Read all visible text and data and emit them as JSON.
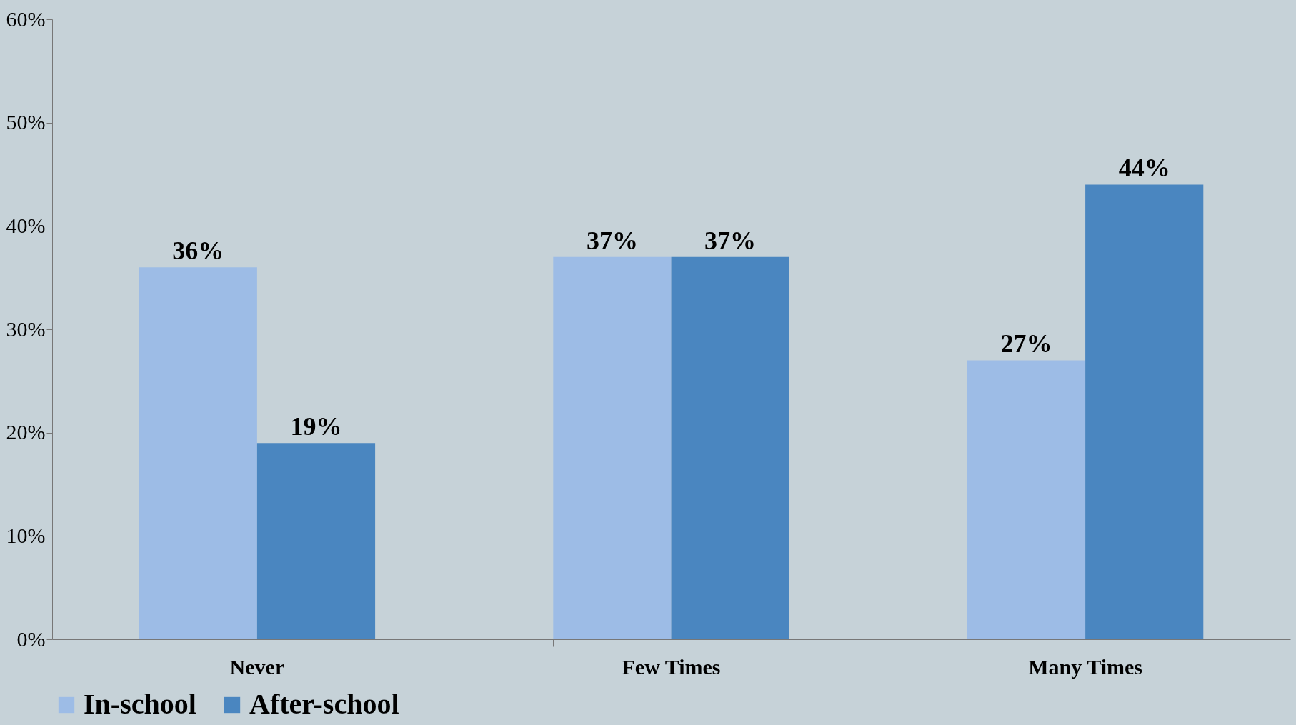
{
  "chart_data": {
    "type": "bar",
    "categories": [
      "Never",
      "Few Times",
      "Many Times"
    ],
    "series": [
      {
        "name": "In-school",
        "color": "#9dbce6",
        "values": [
          36,
          37,
          27
        ],
        "value_labels": [
          "36%",
          "37%",
          "27%"
        ]
      },
      {
        "name": "After-school",
        "color": "#4a86c0",
        "values": [
          19,
          37,
          44
        ],
        "value_labels": [
          "19%",
          "37%",
          "44%"
        ]
      }
    ],
    "ylim": [
      0,
      60
    ],
    "yticks": [
      {
        "value": 0,
        "label": "0%"
      },
      {
        "value": 10,
        "label": "10%"
      },
      {
        "value": 20,
        "label": "20%"
      },
      {
        "value": 30,
        "label": "30%"
      },
      {
        "value": 40,
        "label": "40%"
      },
      {
        "value": 50,
        "label": "50%"
      },
      {
        "value": 60,
        "label": "60%"
      }
    ],
    "grid": false,
    "legend": "bottom"
  }
}
